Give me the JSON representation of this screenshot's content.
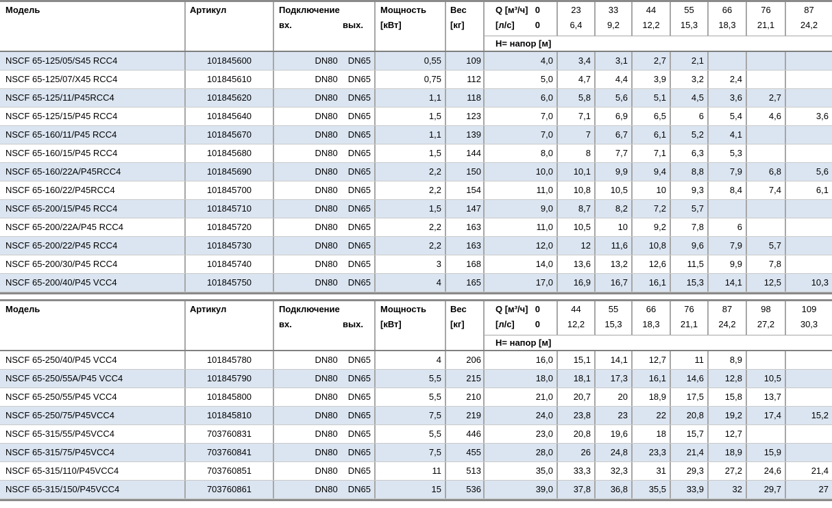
{
  "colors": {
    "row_shaded": "#dbe5f1",
    "grid_line": "#a6a6a6",
    "row_line": "#c9c9c9",
    "heavy_line": "#8a8a8a",
    "header_separator": "#7f7f7f"
  },
  "tables": [
    {
      "headers": {
        "model": "Модель",
        "article": "Артикул",
        "connection": "Подключение",
        "inlet": "вх.",
        "outlet": "вых.",
        "power_l1": "Мощность",
        "power_l2": "[кВт]",
        "weight_l1": "Вес",
        "weight_l2": "[кг]",
        "q_label": "Q [м³/ч]",
        "q_first": "0",
        "ls_label": "[л/с]",
        "ls_first": "0",
        "head_label": "H= напор [м]",
        "flow_cols": [
          {
            "m3h": "23",
            "ls": "6,4"
          },
          {
            "m3h": "33",
            "ls": "9,2"
          },
          {
            "m3h": "44",
            "ls": "12,2"
          },
          {
            "m3h": "55",
            "ls": "15,3"
          },
          {
            "m3h": "66",
            "ls": "18,3"
          },
          {
            "m3h": "76",
            "ls": "21,1"
          },
          {
            "m3h": "87",
            "ls": "24,2"
          }
        ]
      },
      "first_row_shaded": true,
      "rows": [
        {
          "model": "NSCF 65-125/05/S45 RCC4",
          "article": "101845600",
          "inlet": "DN80",
          "outlet": "DN65",
          "power": "0,55",
          "weight": "109",
          "h": [
            "4,0",
            "3,4",
            "3,1",
            "2,7",
            "2,1",
            "",
            "",
            ""
          ]
        },
        {
          "model": "NSCF 65-125/07/X45 RCC4",
          "article": "101845610",
          "inlet": "DN80",
          "outlet": "DN65",
          "power": "0,75",
          "weight": "112",
          "h": [
            "5,0",
            "4,7",
            "4,4",
            "3,9",
            "3,2",
            "2,4",
            "",
            ""
          ]
        },
        {
          "model": "NSCF 65-125/11/P45RCC4",
          "article": "101845620",
          "inlet": "DN80",
          "outlet": "DN65",
          "power": "1,1",
          "weight": "118",
          "h": [
            "6,0",
            "5,8",
            "5,6",
            "5,1",
            "4,5",
            "3,6",
            "2,7",
            ""
          ]
        },
        {
          "model": "NSCF 65-125/15/P45 RCC4",
          "article": "101845640",
          "inlet": "DN80",
          "outlet": "DN65",
          "power": "1,5",
          "weight": "123",
          "h": [
            "7,0",
            "7,1",
            "6,9",
            "6,5",
            "6",
            "5,4",
            "4,6",
            "3,6"
          ]
        },
        {
          "model": "NSCF 65-160/11/P45 RCC4",
          "article": "101845670",
          "inlet": "DN80",
          "outlet": "DN65",
          "power": "1,1",
          "weight": "139",
          "h": [
            "7,0",
            "7",
            "6,7",
            "6,1",
            "5,2",
            "4,1",
            "",
            ""
          ]
        },
        {
          "model": "NSCF 65-160/15/P45 RCC4",
          "article": "101845680",
          "inlet": "DN80",
          "outlet": "DN65",
          "power": "1,5",
          "weight": "144",
          "h": [
            "8,0",
            "8",
            "7,7",
            "7,1",
            "6,3",
            "5,3",
            "",
            ""
          ]
        },
        {
          "model": "NSCF 65-160/22A/P45RCC4",
          "article": "101845690",
          "inlet": "DN80",
          "outlet": "DN65",
          "power": "2,2",
          "weight": "150",
          "h": [
            "10,0",
            "10,1",
            "9,9",
            "9,4",
            "8,8",
            "7,9",
            "6,8",
            "5,6"
          ]
        },
        {
          "model": "NSCF 65-160/22/P45RCC4",
          "article": "101845700",
          "inlet": "DN80",
          "outlet": "DN65",
          "power": "2,2",
          "weight": "154",
          "h": [
            "11,0",
            "10,8",
            "10,5",
            "10",
            "9,3",
            "8,4",
            "7,4",
            "6,1"
          ]
        },
        {
          "model": "NSCF 65-200/15/P45 RCC4",
          "article": "101845710",
          "inlet": "DN80",
          "outlet": "DN65",
          "power": "1,5",
          "weight": "147",
          "h": [
            "9,0",
            "8,7",
            "8,2",
            "7,2",
            "5,7",
            "",
            "",
            ""
          ]
        },
        {
          "model": "NSCF 65-200/22A/P45 RCC4",
          "article": "101845720",
          "inlet": "DN80",
          "outlet": "DN65",
          "power": "2,2",
          "weight": "163",
          "h": [
            "11,0",
            "10,5",
            "10",
            "9,2",
            "7,8",
            "6",
            "",
            ""
          ]
        },
        {
          "model": "NSCF 65-200/22/P45 RCC4",
          "article": "101845730",
          "inlet": "DN80",
          "outlet": "DN65",
          "power": "2,2",
          "weight": "163",
          "h": [
            "12,0",
            "12",
            "11,6",
            "10,8",
            "9,6",
            "7,9",
            "5,7",
            ""
          ]
        },
        {
          "model": "NSCF 65-200/30/P45 RCC4",
          "article": "101845740",
          "inlet": "DN80",
          "outlet": "DN65",
          "power": "3",
          "weight": "168",
          "h": [
            "14,0",
            "13,6",
            "13,2",
            "12,6",
            "11,5",
            "9,9",
            "7,8",
            ""
          ]
        },
        {
          "model": "NSCF 65-200/40/P45 VCC4",
          "article": "101845750",
          "inlet": "DN80",
          "outlet": "DN65",
          "power": "4",
          "weight": "165",
          "h": [
            "17,0",
            "16,9",
            "16,7",
            "16,1",
            "15,3",
            "14,1",
            "12,5",
            "10,3"
          ]
        }
      ]
    },
    {
      "headers": {
        "model": "Модель",
        "article": "Артикул",
        "connection": "Подключение",
        "inlet": "вх.",
        "outlet": "вых.",
        "power_l1": "Мощность",
        "power_l2": "[кВт]",
        "weight_l1": "Вес",
        "weight_l2": "[кг]",
        "q_label": "Q [м³/ч]",
        "q_first": "0",
        "ls_label": "[л/с]",
        "ls_first": "0",
        "head_label": "H= напор [м]",
        "flow_cols": [
          {
            "m3h": "44",
            "ls": "12,2"
          },
          {
            "m3h": "55",
            "ls": "15,3"
          },
          {
            "m3h": "66",
            "ls": "18,3"
          },
          {
            "m3h": "76",
            "ls": "21,1"
          },
          {
            "m3h": "87",
            "ls": "24,2"
          },
          {
            "m3h": "98",
            "ls": "27,2"
          },
          {
            "m3h": "109",
            "ls": "30,3"
          }
        ]
      },
      "first_row_shaded": false,
      "rows": [
        {
          "model": "NSCF 65-250/40/P45 VCC4",
          "article": "101845780",
          "inlet": "DN80",
          "outlet": "DN65",
          "power": "4",
          "weight": "206",
          "h": [
            "16,0",
            "15,1",
            "14,1",
            "12,7",
            "11",
            "8,9",
            "",
            ""
          ]
        },
        {
          "model": "NSCF 65-250/55A/P45 VCC4",
          "article": "101845790",
          "inlet": "DN80",
          "outlet": "DN65",
          "power": "5,5",
          "weight": "215",
          "h": [
            "18,0",
            "18,1",
            "17,3",
            "16,1",
            "14,6",
            "12,8",
            "10,5",
            ""
          ]
        },
        {
          "model": "NSCF 65-250/55/P45 VCC4",
          "article": "101845800",
          "inlet": "DN80",
          "outlet": "DN65",
          "power": "5,5",
          "weight": "210",
          "h": [
            "21,0",
            "20,7",
            "20",
            "18,9",
            "17,5",
            "15,8",
            "13,7",
            ""
          ]
        },
        {
          "model": "NSCF 65-250/75/P45VCC4",
          "article": "101845810",
          "inlet": "DN80",
          "outlet": "DN65",
          "power": "7,5",
          "weight": "219",
          "h": [
            "24,0",
            "23,8",
            "23",
            "22",
            "20,8",
            "19,2",
            "17,4",
            "15,2"
          ]
        },
        {
          "model": "NSCF 65-315/55/P45VCC4",
          "article": "703760831",
          "inlet": "DN80",
          "outlet": "DN65",
          "power": "5,5",
          "weight": "446",
          "h": [
            "23,0",
            "20,8",
            "19,6",
            "18",
            "15,7",
            "12,7",
            "",
            ""
          ]
        },
        {
          "model": "NSCF 65-315/75/P45VCC4",
          "article": "703760841",
          "inlet": "DN80",
          "outlet": "DN65",
          "power": "7,5",
          "weight": "455",
          "h": [
            "28,0",
            "26",
            "24,8",
            "23,3",
            "21,4",
            "18,9",
            "15,9",
            ""
          ]
        },
        {
          "model": "NSCF 65-315/110/P45VCC4",
          "article": "703760851",
          "inlet": "DN80",
          "outlet": "DN65",
          "power": "11",
          "weight": "513",
          "h": [
            "35,0",
            "33,3",
            "32,3",
            "31",
            "29,3",
            "27,2",
            "24,6",
            "21,4"
          ]
        },
        {
          "model": "NSCF 65-315/150/P45VCC4",
          "article": "703760861",
          "inlet": "DN80",
          "outlet": "DN65",
          "power": "15",
          "weight": "536",
          "h": [
            "39,0",
            "37,8",
            "36,8",
            "35,5",
            "33,9",
            "32",
            "29,7",
            "27"
          ]
        }
      ]
    }
  ]
}
